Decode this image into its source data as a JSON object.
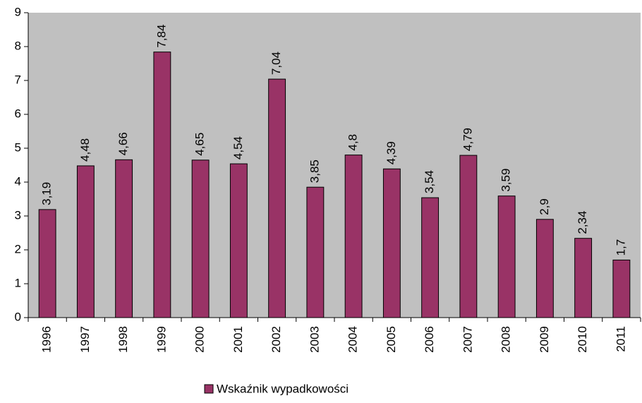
{
  "chart_data": {
    "type": "bar",
    "categories": [
      "1996",
      "1997",
      "1998",
      "1999",
      "2000",
      "2001",
      "2002",
      "2003",
      "2004",
      "2005",
      "2006",
      "2007",
      "2008",
      "2009",
      "2010",
      "2011"
    ],
    "series": [
      {
        "name": "Wskaźnik wypadkowości",
        "color": "#993366",
        "values": [
          3.19,
          4.48,
          4.66,
          7.84,
          4.65,
          4.54,
          7.04,
          3.85,
          4.8,
          4.39,
          3.54,
          4.79,
          3.59,
          2.9,
          2.34,
          1.7
        ],
        "value_labels": [
          "3,19",
          "4,48",
          "4,66",
          "7,84",
          "4,65",
          "4,54",
          "7,04",
          "3,85",
          "4,8",
          "4,39",
          "3,54",
          "4,79",
          "3,59",
          "2,9",
          "2,34",
          "1,7"
        ]
      }
    ],
    "ylim": [
      0,
      9
    ],
    "yticks": [
      0,
      1,
      2,
      3,
      4,
      5,
      6,
      7,
      8,
      9
    ],
    "plot_background": "#c0c0c0",
    "legend": "bottom"
  }
}
